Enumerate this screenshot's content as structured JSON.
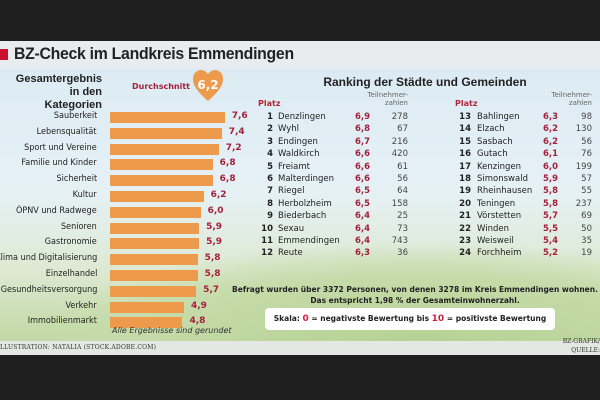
{
  "title": "BZ-Check im Landkreis Emmendingen",
  "colors": {
    "bar": "#ee9a4d",
    "accent": "#c8102e",
    "value": "#a3213a"
  },
  "chart_data": {
    "type": "bar",
    "title": "Gesamtergebnis in den Kategorien",
    "title_lines": [
      "Gesamtergebnis",
      "in den Kategorien"
    ],
    "orientation": "horizontal",
    "average_label": "Durchschnitt",
    "average_value": "6,2",
    "categories": [
      "Sauberkeit",
      "Lebensqualität",
      "Sport und Vereine",
      "Familie und Kinder",
      "Sicherheit",
      "Kultur",
      "ÖPNV und Radwege",
      "Senioren",
      "Gastronomie",
      "Klima und Digitalisierung",
      "Einzelhandel",
      "Gesundheitsversorgung",
      "Verkehr",
      "Immobilienmarkt"
    ],
    "values": [
      7.6,
      7.4,
      7.2,
      6.8,
      6.8,
      6.2,
      6.0,
      5.9,
      5.9,
      5.8,
      5.8,
      5.7,
      4.9,
      4.8
    ],
    "value_labels": [
      "7,6",
      "7,4",
      "7,2",
      "6,8",
      "6,8",
      "6,2",
      "6,0",
      "5,9",
      "5,9",
      "5,8",
      "5,8",
      "5,7",
      "4,9",
      "4,8"
    ],
    "note": "Alle Ergebnisse sind gerundet"
  },
  "ranking": {
    "title": "Ranking der Städte und Gemeinden",
    "platz_label": "Platz",
    "participants_label": [
      "Teilnehmer-",
      "zahlen"
    ],
    "rows": [
      {
        "rank": "1",
        "name": "Denzlingen",
        "score": "6,9",
        "count": "278"
      },
      {
        "rank": "2",
        "name": "Wyhl",
        "score": "6,8",
        "count": "67"
      },
      {
        "rank": "3",
        "name": "Endingen",
        "score": "6,7",
        "count": "216"
      },
      {
        "rank": "4",
        "name": "Waldkirch",
        "score": "6,6",
        "count": "420"
      },
      {
        "rank": "5",
        "name": "Freiamt",
        "score": "6,6",
        "count": "61"
      },
      {
        "rank": "6",
        "name": "Malterdingen",
        "score": "6,6",
        "count": "56"
      },
      {
        "rank": "7",
        "name": "Riegel",
        "score": "6,5",
        "count": "64"
      },
      {
        "rank": "8",
        "name": "Herbolzheim",
        "score": "6,5",
        "count": "158"
      },
      {
        "rank": "9",
        "name": "Biederbach",
        "score": "6,4",
        "count": "25"
      },
      {
        "rank": "10",
        "name": "Sexau",
        "score": "6,4",
        "count": "73"
      },
      {
        "rank": "11",
        "name": "Emmendingen",
        "score": "6,4",
        "count": "743"
      },
      {
        "rank": "12",
        "name": "Reute",
        "score": "6,3",
        "count": "36"
      },
      {
        "rank": "13",
        "name": "Bahlingen",
        "score": "6,3",
        "count": "98"
      },
      {
        "rank": "14",
        "name": "Elzach",
        "score": "6,2",
        "count": "130"
      },
      {
        "rank": "15",
        "name": "Sasbach",
        "score": "6,2",
        "count": "56"
      },
      {
        "rank": "16",
        "name": "Gutach",
        "score": "6,1",
        "count": "76"
      },
      {
        "rank": "17",
        "name": "Kenzingen",
        "score": "6,0",
        "count": "199"
      },
      {
        "rank": "18",
        "name": "Simonswald",
        "score": "5,9",
        "count": "57"
      },
      {
        "rank": "19",
        "name": "Rheinhausen",
        "score": "5,8",
        "count": "55"
      },
      {
        "rank": "20",
        "name": "Teningen",
        "score": "5,8",
        "count": "237"
      },
      {
        "rank": "21",
        "name": "Vörstetten",
        "score": "5,7",
        "count": "69"
      },
      {
        "rank": "22",
        "name": "Winden",
        "score": "5,5",
        "count": "50"
      },
      {
        "rank": "23",
        "name": "Weisweil",
        "score": "5,4",
        "count": "35"
      },
      {
        "rank": "24",
        "name": "Forchheim",
        "score": "5,2",
        "count": "19"
      }
    ]
  },
  "survey_note": [
    "Befragt wurden über 3372 Personen, von denen 3278 im Kreis Emmendingen wohnen.",
    "Das entspricht 1,98 % der Gesamteinwohnerzahl."
  ],
  "scale": {
    "prefix": "Skala: ",
    "min": "0",
    "min_text": " = negativste Bewertung bis ",
    "max": "10",
    "max_text": " = positivste Bewertung"
  },
  "credit": "LLUSTRATION: NATALIA (STOCK.ADOBE.COM)",
  "source": [
    "BZ-GRAFIK/",
    "QUELLE:"
  ]
}
